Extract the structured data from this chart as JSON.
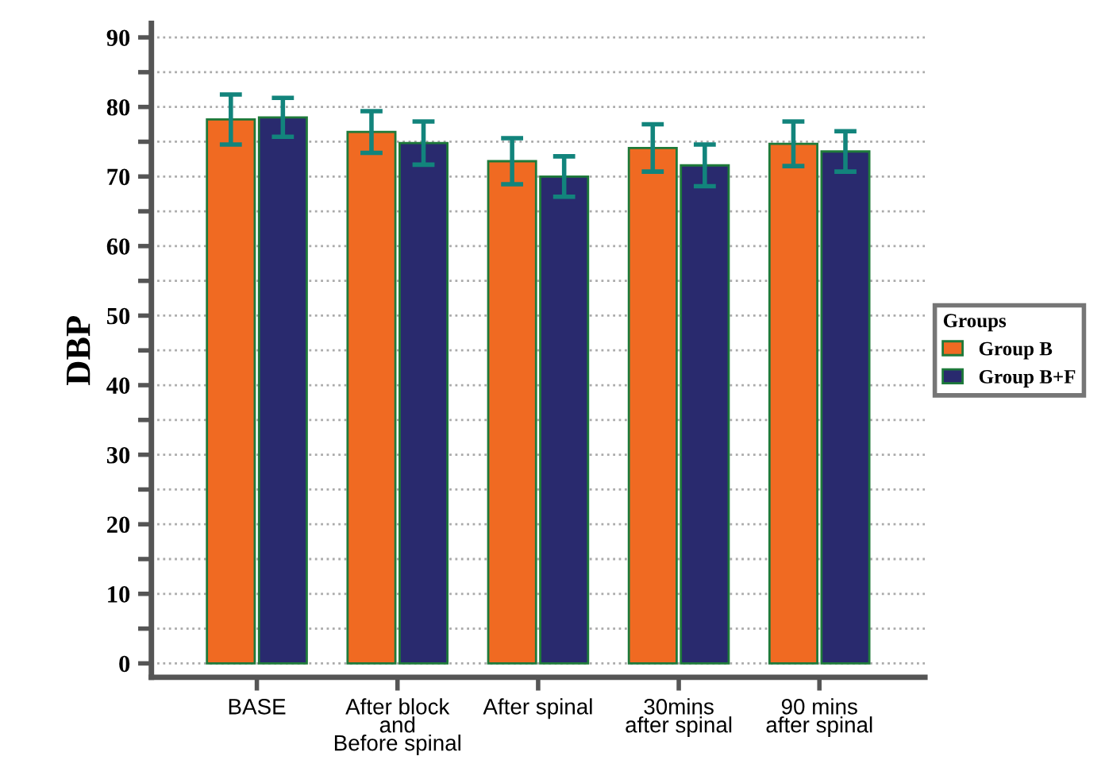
{
  "chart_data": {
    "type": "bar",
    "ylabel": "DBP",
    "legend_title": "Groups",
    "categories": [
      "BASE",
      "After block\nand\nBefore spinal",
      "After spinal",
      "30mins\nafter spinal",
      "90 mins\nafter spinal"
    ],
    "series": [
      {
        "name": "Group B",
        "color": "#f06a22",
        "values": [
          78.2,
          76.4,
          72.2,
          74.1,
          74.7
        ],
        "errors": [
          3.6,
          3.0,
          3.3,
          3.4,
          3.2
        ]
      },
      {
        "name": "Group B+F",
        "color": "#292a6e",
        "values": [
          78.5,
          74.8,
          70.0,
          71.6,
          73.6
        ],
        "errors": [
          2.8,
          3.1,
          2.9,
          3.0,
          2.9
        ]
      }
    ],
    "ylim": [
      -2,
      92
    ],
    "yticks": [
      0,
      {
        "value": 5,
        "label": null
      },
      10,
      {
        "value": 15,
        "label": null
      },
      20,
      {
        "value": 25,
        "label": null
      },
      30,
      {
        "value": 35,
        "label": null
      },
      40,
      {
        "value": 45,
        "label": null
      },
      50,
      {
        "value": 55,
        "label": null
      },
      60,
      {
        "value": 65,
        "label": null
      },
      70,
      {
        "value": 75,
        "label": null
      },
      80,
      {
        "value": 85,
        "label": null
      },
      90
    ],
    "grid": "y",
    "legend": "right"
  }
}
